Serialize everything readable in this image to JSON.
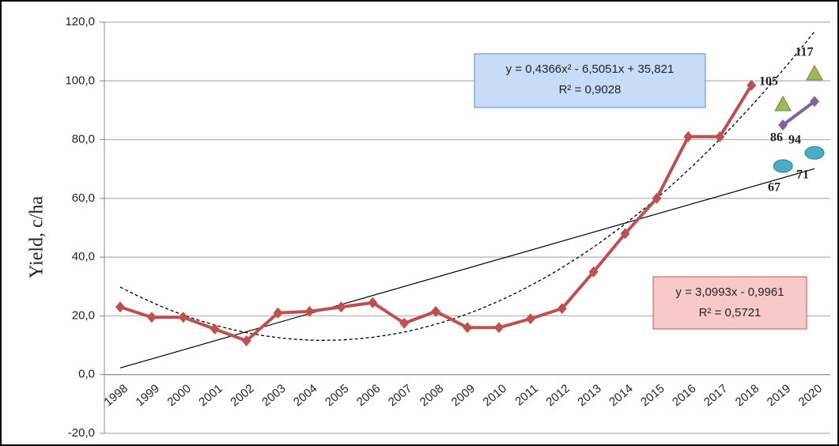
{
  "chart_data": {
    "type": "line",
    "y_label": "Yield, c/ha",
    "categories": [
      "1998",
      "1999",
      "2000",
      "2001",
      "2002",
      "2003",
      "2004",
      "2005",
      "2006",
      "2007",
      "2008",
      "2009",
      "2010",
      "2011",
      "2012",
      "2013",
      "2014",
      "2015",
      "2016",
      "2017",
      "2018",
      "2019",
      "2020"
    ],
    "ylim": [
      -20,
      120
    ],
    "yticks": [
      {
        "value": -20,
        "label": "-20,0"
      },
      {
        "value": 0,
        "label": "0,0"
      },
      {
        "value": 20,
        "label": "20,0"
      },
      {
        "value": 40,
        "label": "40,0"
      },
      {
        "value": 60,
        "label": "60,0"
      },
      {
        "value": 80,
        "label": "80,0"
      },
      {
        "value": 100,
        "label": "100,0"
      },
      {
        "value": 120,
        "label": "120,0"
      }
    ],
    "grid": true,
    "series": [
      {
        "color": "#c0504d",
        "marker": "diamond",
        "line": true,
        "trend": true,
        "values": [
          23,
          19.5,
          19.5,
          15.5,
          11.5,
          21,
          21.5,
          23,
          24.5,
          17.5,
          21.5,
          16,
          16,
          19,
          22.5,
          35,
          48,
          60,
          81,
          81,
          98.5,
          null,
          null
        ]
      },
      {
        "color": "#9bbb59",
        "marker": "triangle",
        "line": false,
        "trend": false,
        "values": [
          null,
          null,
          null,
          null,
          null,
          null,
          null,
          null,
          null,
          null,
          null,
          null,
          null,
          null,
          null,
          null,
          null,
          null,
          null,
          null,
          null,
          92,
          102.5
        ]
      },
      {
        "color": "#8064a2",
        "marker": "diamond",
        "line": true,
        "trend": false,
        "values": [
          null,
          null,
          null,
          null,
          null,
          null,
          null,
          null,
          null,
          null,
          null,
          null,
          null,
          null,
          null,
          null,
          null,
          null,
          null,
          null,
          null,
          85,
          93
        ]
      },
      {
        "color": "#4bacc6",
        "marker": "ellipse",
        "line": false,
        "trend": false,
        "values": [
          null,
          null,
          null,
          null,
          null,
          null,
          null,
          null,
          null,
          null,
          null,
          null,
          null,
          null,
          null,
          null,
          null,
          null,
          null,
          null,
          null,
          71,
          75.5
        ]
      }
    ],
    "annotations": [
      "105",
      "117",
      "86",
      "94",
      "67",
      "71"
    ],
    "equations": [
      {
        "formula": "y = 0,4366x² - 6,5051x + 35,821",
        "r2": "R² = 0,9028"
      },
      {
        "formula": "y = 3,0993x - 0,9961",
        "r2": "R² = 0,5721"
      }
    ]
  }
}
